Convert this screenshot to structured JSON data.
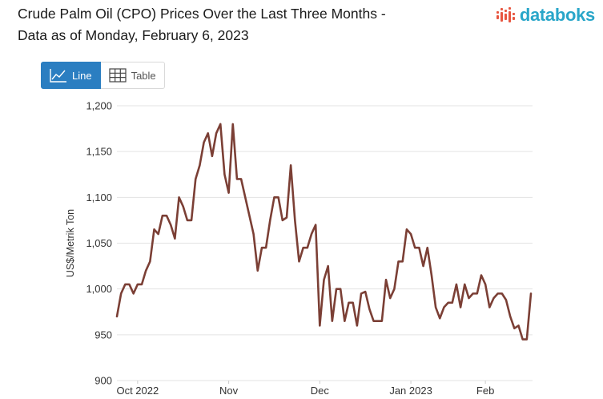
{
  "header": {
    "title_line1": "Crude Palm Oil (CPO) Prices Over the Last Three Months -",
    "title_line2": "Data as of Monday, February 6, 2023",
    "brand": "databoks"
  },
  "view_toggle": {
    "line_label": "Line",
    "table_label": "Table",
    "active": "line"
  },
  "colors": {
    "line": "#7b3f35",
    "grid": "#e3e3e3",
    "active_button": "#2b7ec1",
    "brand": "#29a6c9",
    "logo_mark": "#e8553f"
  },
  "chart_data": {
    "type": "line",
    "title": "Crude Palm Oil (CPO) Prices Over the Last Three Months - Data as of Monday, February 6, 2023",
    "xlabel": "",
    "ylabel": "US$/Metrik Ton",
    "ylim": [
      900,
      1200
    ],
    "yticks": [
      900,
      950,
      1000,
      1050,
      1100,
      1150,
      1200
    ],
    "ytick_labels": [
      "900",
      "950",
      "1,000",
      "1,050",
      "1,100",
      "1,150",
      "1,200"
    ],
    "x_ticks": [
      {
        "label": "Oct 2022",
        "index": 5
      },
      {
        "label": "Nov",
        "index": 27
      },
      {
        "label": "Dec",
        "index": 49
      },
      {
        "label": "Jan 2023",
        "index": 71
      },
      {
        "label": "Feb",
        "index": 89
      }
    ],
    "grid": true,
    "legend": "none",
    "series": [
      {
        "name": "CPO Price",
        "values": [
          970,
          995,
          1005,
          1005,
          995,
          1005,
          1005,
          1020,
          1030,
          1065,
          1060,
          1080,
          1080,
          1070,
          1055,
          1100,
          1090,
          1075,
          1075,
          1120,
          1135,
          1160,
          1170,
          1145,
          1170,
          1180,
          1125,
          1105,
          1180,
          1120,
          1120,
          1100,
          1080,
          1060,
          1020,
          1045,
          1045,
          1075,
          1100,
          1100,
          1075,
          1078,
          1135,
          1075,
          1030,
          1045,
          1045,
          1060,
          1070,
          960,
          1010,
          1025,
          965,
          1000,
          1000,
          965,
          985,
          985,
          960,
          995,
          997,
          978,
          965,
          965,
          965,
          1010,
          990,
          1000,
          1030,
          1030,
          1065,
          1060,
          1045,
          1045,
          1025,
          1045,
          1015,
          980,
          968,
          980,
          985,
          985,
          1005,
          980,
          1005,
          990,
          995,
          995,
          1015,
          1005,
          980,
          990,
          995,
          995,
          988,
          970,
          957,
          960,
          945,
          945,
          995
        ]
      }
    ]
  }
}
